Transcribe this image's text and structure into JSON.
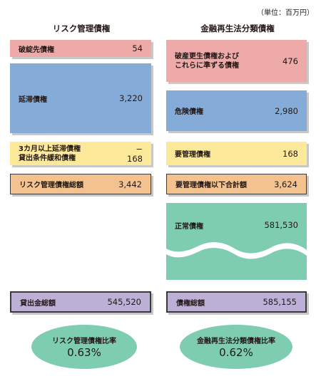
{
  "unit": "（単位：百万円）",
  "left": {
    "header": "リスク管理債権",
    "bankrupt": {
      "label": "破綻先債権",
      "value": "54"
    },
    "delinquent": {
      "label": "延滞債権",
      "value": "3,220"
    },
    "past_due": {
      "label_line1": "3カ月以上延滞債権",
      "label_line2": "貸出条件緩和債権",
      "value_line1": "−",
      "value_line2": "168"
    },
    "total": {
      "label": "リスク管理債権総額",
      "value": "3,442"
    },
    "loans": {
      "label": "貸出金総額",
      "value": "545,520"
    },
    "ratio": {
      "label": "リスク管理債権比率",
      "value": "0.63%"
    }
  },
  "right": {
    "header": "金融再生法分類債権",
    "bankrupt": {
      "label_line1": "破産更生債権および",
      "label_line2": "これらに準ずる債権",
      "value": "476"
    },
    "doubtful": {
      "label": "危険債権",
      "value": "2,980"
    },
    "special": {
      "label": "要管理債権",
      "value": "168"
    },
    "subtotal": {
      "label": "要管理債権以下合計額",
      "value": "3,624"
    },
    "normal": {
      "label": "正常債権",
      "value": "581,530"
    },
    "total": {
      "label": "債権総額",
      "value": "585,155"
    },
    "ratio": {
      "label": "金融再生法分類債権比率",
      "value": "0.62%"
    }
  },
  "colors": {
    "pink": "#eeaaa9",
    "blue": "#85acd8",
    "yellow": "#fde99a",
    "orange": "#f3c28f",
    "green": "#7fcdb0",
    "purple": "#bcb0d6"
  }
}
